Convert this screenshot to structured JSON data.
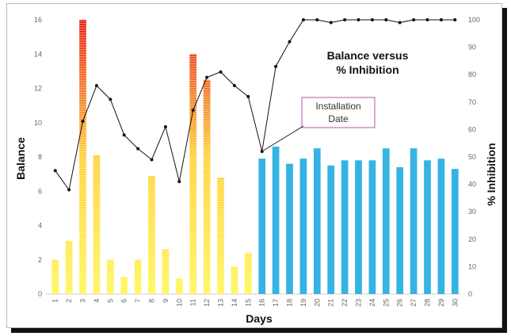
{
  "chart_data": {
    "type": "bar+line",
    "title": "Balance versus\n% Inhibition",
    "xlabel": "Days",
    "ylabel": "Balance",
    "y2label": "% Inhibition",
    "ylim": [
      0,
      16
    ],
    "y2lim": [
      0,
      100
    ],
    "yticks": [
      0,
      2,
      4,
      6,
      8,
      10,
      12,
      14,
      16
    ],
    "y2ticks": [
      0,
      10,
      20,
      30,
      40,
      50,
      60,
      70,
      80,
      90,
      100
    ],
    "categories": [
      "1",
      "2",
      "3",
      "4",
      "5",
      "6",
      "7",
      "8",
      "9",
      "10",
      "11",
      "12",
      "13",
      "14",
      "15",
      "16",
      "17",
      "18",
      "19",
      "20",
      "21",
      "22",
      "23",
      "24",
      "25",
      "26",
      "27",
      "28",
      "29",
      "30"
    ],
    "series": [
      {
        "axis": "left",
        "values": [
          2,
          3.1,
          16,
          8.1,
          2,
          1,
          2,
          6.9,
          2.6,
          0.9,
          14,
          12.5,
          6.8,
          1.6,
          2.4,
          7.9,
          8.6,
          7.6,
          7.9,
          8.5,
          7.5,
          7.8,
          7.8,
          7.8,
          8.5,
          7.4,
          8.5,
          7.8,
          7.9,
          7.3
        ],
        "color_before": "gradient-yellow-red",
        "color_after": "#35b3e3"
      },
      {
        "axis": "right",
        "type": "line",
        "values": [
          45,
          38,
          63,
          76,
          71,
          58,
          53,
          49,
          61,
          41,
          67,
          79,
          81,
          76,
          72,
          52,
          83,
          92,
          100,
          100,
          99,
          100,
          100,
          100,
          100,
          99,
          100,
          100,
          100,
          100
        ],
        "color": "#111111"
      }
    ],
    "annotation": {
      "text": "Installation\nDate",
      "at_day": "16"
    }
  },
  "colors": {
    "after_bar": "#35b3e3",
    "gradient_top": "#e8241c",
    "gradient_bottom": "#fff65a",
    "line": "#111111"
  }
}
